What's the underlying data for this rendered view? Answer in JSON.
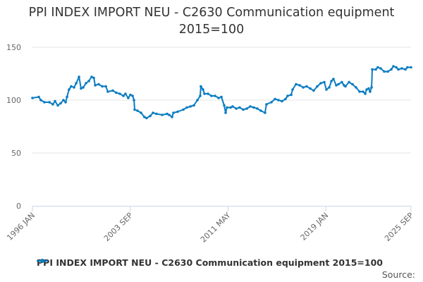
{
  "chart_data": {
    "type": "line",
    "title_line1": "PPI INDEX IMPORT NEU - C2630 Communication equipment",
    "title_line2": "2015=100",
    "xlabel": "",
    "ylabel": "",
    "ylim": [
      0,
      150
    ],
    "xlim": [
      1996.0,
      2025.67
    ],
    "y_ticks": [
      {
        "value": 0,
        "label": "0"
      },
      {
        "value": 50,
        "label": "50"
      },
      {
        "value": 100,
        "label": "100"
      },
      {
        "value": 150,
        "label": "150"
      }
    ],
    "x_ticks": [
      {
        "value": 1996.0,
        "label": "1996 JAN"
      },
      {
        "value": 2003.67,
        "label": "2003 SEP"
      },
      {
        "value": 2011.33,
        "label": "2011 MAY"
      },
      {
        "value": 2019.0,
        "label": "2019 JAN"
      },
      {
        "value": 2025.67,
        "label": "2025 SEP"
      }
    ],
    "grid": true,
    "legend_position": "bottom",
    "series": [
      {
        "name": "PPI INDEX IMPORT NEU - C2630 Communication equipment 2015=100",
        "color": "#0a7cc2",
        "x": [
          1996.0,
          1996.5,
          1996.66,
          1996.94,
          1997.33,
          1997.6,
          1997.77,
          1997.99,
          1998.21,
          1998.43,
          1998.6,
          1998.71,
          1998.87,
          1999.04,
          1999.26,
          1999.43,
          1999.65,
          1999.81,
          1999.98,
          2000.2,
          2000.42,
          2000.64,
          2000.81,
          2000.92,
          2001.19,
          2001.47,
          2001.75,
          2001.91,
          2002.3,
          2002.57,
          2002.85,
          2003.13,
          2003.29,
          2003.51,
          2003.68,
          2003.85,
          2003.96,
          2004.01,
          2004.23,
          2004.51,
          2004.78,
          2004.95,
          2005.23,
          2005.45,
          2005.72,
          2006.17,
          2006.55,
          2006.72,
          2006.94,
          2007.05,
          2007.38,
          2007.82,
          2008.1,
          2008.38,
          2008.65,
          2008.93,
          2009.15,
          2009.2,
          2009.37,
          2009.48,
          2009.76,
          2010.03,
          2010.31,
          2010.59,
          2010.81,
          2011.03,
          2011.14,
          2011.25,
          2011.53,
          2011.69,
          2011.97,
          2012.24,
          2012.52,
          2012.8,
          2013.07,
          2013.35,
          2013.62,
          2013.9,
          2014.23,
          2014.34,
          2014.73,
          2015.01,
          2015.28,
          2015.56,
          2015.83,
          2016.0,
          2016.28,
          2016.39,
          2016.66,
          2016.94,
          2017.22,
          2017.49,
          2017.77,
          2018.04,
          2018.32,
          2018.6,
          2018.87,
          2019.04,
          2019.26,
          2019.43,
          2019.59,
          2019.81,
          2019.98,
          2020.25,
          2020.42,
          2020.53,
          2020.81,
          2021.08,
          2021.36,
          2021.64,
          2021.91,
          2022.08,
          2022.19,
          2022.35,
          2022.46,
          2022.58,
          2022.63,
          2022.91,
          2023.07,
          2023.29,
          2023.57,
          2023.85,
          2024.12,
          2024.29,
          2024.51,
          2024.68,
          2024.95,
          2025.23,
          2025.39,
          2025.67
        ],
        "y": [
          102,
          103,
          100,
          98,
          98,
          96,
          99,
          95,
          97,
          100,
          98,
          103,
          110,
          113,
          112,
          116,
          122,
          111,
          112,
          116,
          118,
          122,
          121,
          114,
          115,
          113,
          113,
          108,
          109,
          107,
          106,
          104,
          106,
          102,
          105,
          104,
          100,
          91,
          90,
          88,
          84,
          83,
          85,
          88,
          87,
          86,
          87,
          86,
          84,
          88,
          89,
          91,
          93,
          94,
          95,
          100,
          104,
          113,
          110,
          106,
          106,
          104,
          104,
          102,
          103,
          95,
          88,
          93,
          93,
          94,
          92,
          93,
          91,
          92,
          94,
          93,
          92,
          90,
          88,
          96,
          98,
          101,
          100,
          99,
          101,
          104,
          105,
          110,
          115,
          114,
          112,
          113,
          111,
          109,
          113,
          116,
          117,
          110,
          112,
          118,
          120,
          114,
          115,
          117,
          114,
          113,
          117,
          115,
          112,
          108,
          108,
          106,
          110,
          111,
          108,
          112,
          129,
          129,
          131,
          130,
          127,
          127,
          129,
          132,
          131,
          129,
          130,
          129,
          131,
          131
        ]
      }
    ],
    "source_label": "Source:"
  }
}
